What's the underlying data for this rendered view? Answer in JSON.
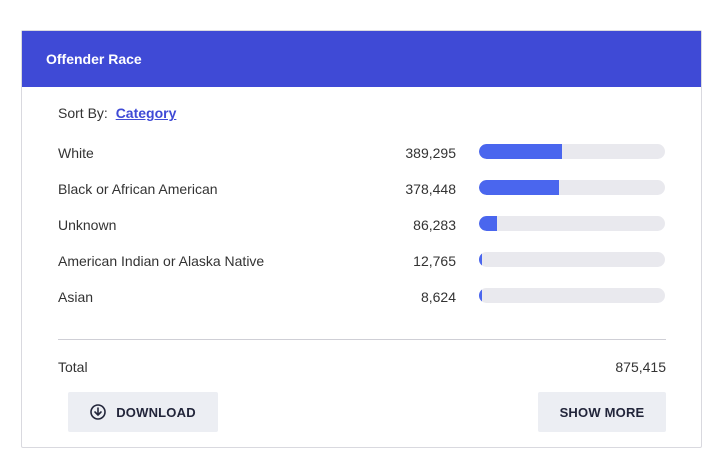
{
  "card": {
    "title": "Offender Race"
  },
  "sort": {
    "label": "Sort By:",
    "value": "Category"
  },
  "rows": [
    {
      "label": "White",
      "value": "389,295",
      "fraction": 0.4447
    },
    {
      "label": "Black or African American",
      "value": "378,448",
      "fraction": 0.4323
    },
    {
      "label": "Unknown",
      "value": "86,283",
      "fraction": 0.0986
    },
    {
      "label": "American Indian or Alaska Native",
      "value": "12,765",
      "fraction": 0.0146
    },
    {
      "label": "Asian",
      "value": "8,624",
      "fraction": 0.0099
    }
  ],
  "total": {
    "label": "Total",
    "value": "875,415"
  },
  "actions": {
    "download_label": "DOWNLOAD",
    "download_icon": "download-circle-icon",
    "show_more_label": "SHOW MORE"
  },
  "colors": {
    "header": "#3f4ad6",
    "bar_fill": "#4a66ee",
    "bar_track": "#e9e9ee",
    "button_bg": "#eceef3"
  }
}
